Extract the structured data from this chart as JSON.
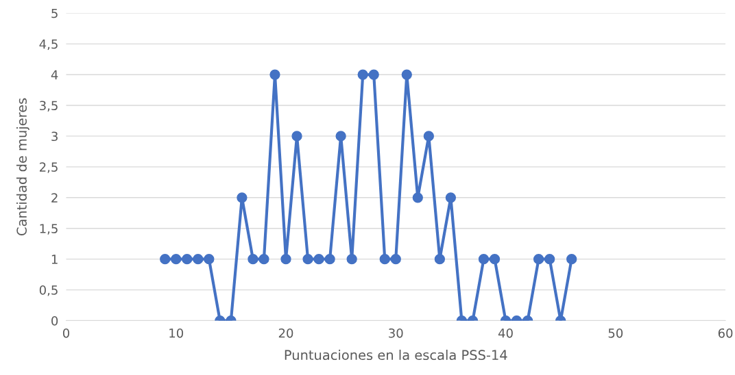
{
  "chart_data": {
    "type": "line",
    "xlabel": "Puntuaciones en la escala PSS-14",
    "ylabel": "Cantidad de mujeres",
    "x": [
      9,
      10,
      11,
      12,
      13,
      14,
      15,
      16,
      17,
      18,
      19,
      20,
      21,
      22,
      23,
      24,
      25,
      26,
      27,
      28,
      29,
      30,
      31,
      32,
      33,
      34,
      35,
      36,
      37,
      38,
      39,
      40,
      41,
      42,
      43,
      44,
      45,
      46
    ],
    "series": [
      {
        "color": "#4472c4",
        "values": [
          1,
          1,
          1,
          1,
          1,
          0,
          0,
          2,
          1,
          1,
          4,
          1,
          3,
          1,
          1,
          1,
          3,
          1,
          4,
          4,
          1,
          1,
          4,
          2,
          3,
          1,
          2,
          0,
          0,
          1,
          1,
          0,
          0,
          0,
          1,
          1,
          0,
          1
        ]
      }
    ],
    "xlim": [
      0,
      60
    ],
    "xticks": [
      0,
      10,
      20,
      30,
      40,
      50,
      60
    ],
    "ylim": [
      0,
      5
    ],
    "yticks": [
      0,
      {
        "value": 0.5,
        "label": "0,5"
      },
      1,
      {
        "value": 1.5,
        "label": "1,5"
      },
      2,
      {
        "value": 2.5,
        "label": "2,5"
      },
      3,
      {
        "value": 3.5,
        "label": "3,5"
      },
      4,
      {
        "value": 4.5,
        "label": "4,5"
      },
      5
    ],
    "grid": "y",
    "marker": "circle",
    "line_style": "solid"
  }
}
